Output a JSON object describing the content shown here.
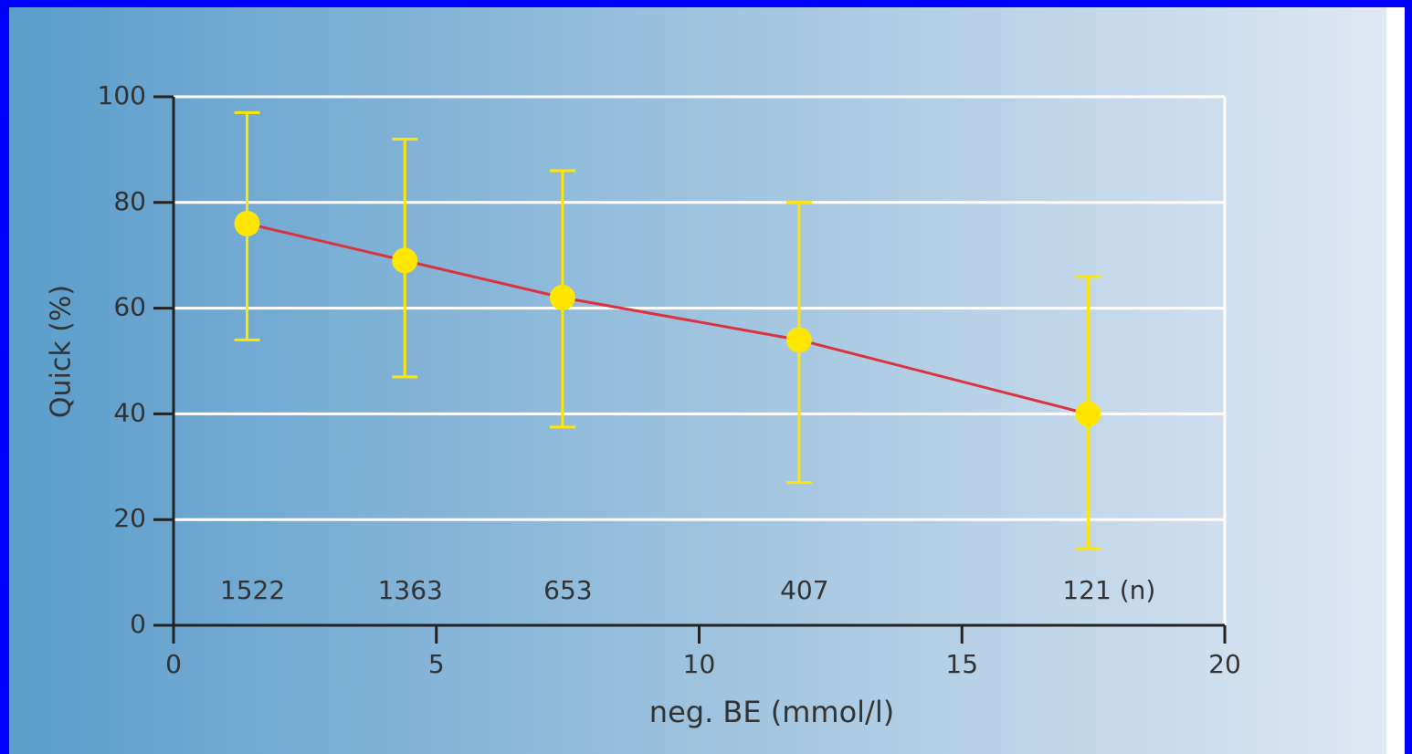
{
  "chart_data": {
    "type": "errorbar",
    "xlabel": "neg. BE (mmol/l)",
    "ylabel": "Quick (%)",
    "x": [
      1.4,
      4.4,
      7.4,
      11.9,
      17.4
    ],
    "values": [
      76,
      69,
      62,
      54,
      40
    ],
    "upper": [
      97,
      92,
      86,
      80,
      66
    ],
    "lower": [
      54,
      47,
      37.5,
      27,
      14.5
    ],
    "n_labels": [
      "1522",
      "1363",
      "653",
      "407",
      "121 (n)"
    ],
    "line_color": "#d9333f",
    "marker_color": "#ffe600",
    "xlim": [
      0,
      20
    ],
    "xticks": [
      0,
      5,
      10,
      15,
      20
    ],
    "ylim": [
      0,
      100
    ],
    "yticks": [
      0,
      20,
      40,
      60,
      80,
      100
    ],
    "grid": true
  }
}
